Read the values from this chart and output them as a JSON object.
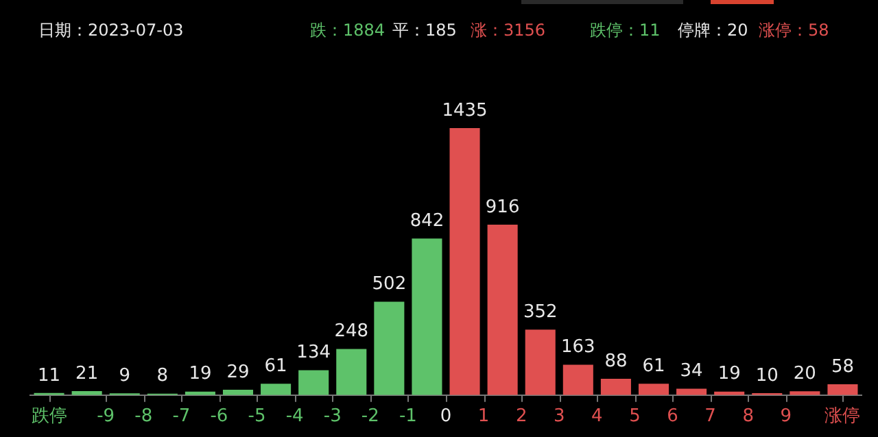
{
  "chart_data": {
    "type": "bar",
    "annotations": [
      "日期：2023-07-03",
      "跌：1884",
      "平：185",
      "涨：3156",
      "跌停：11",
      "停牌：20",
      "涨停：58"
    ],
    "x": [
      -10.5,
      -9.5,
      -8.5,
      -7.5,
      -6.5,
      -5.5,
      -4.5,
      -3.5,
      -2.5,
      -1.5,
      -0.5,
      0.5,
      1.5,
      2.5,
      3.5,
      4.5,
      5.5,
      6.5,
      7.5,
      8.5,
      9.5,
      10.5
    ],
    "values": [
      11,
      21,
      9,
      8,
      19,
      29,
      61,
      134,
      248,
      502,
      842,
      1435,
      916,
      352,
      163,
      88,
      61,
      34,
      19,
      10,
      20,
      58
    ],
    "colors": [
      "#5ec26a",
      "#5ec26a",
      "#5ec26a",
      "#5ec26a",
      "#5ec26a",
      "#5ec26a",
      "#5ec26a",
      "#5ec26a",
      "#5ec26a",
      "#5ec26a",
      "#5ec26a",
      "#e05050",
      "#e05050",
      "#e05050",
      "#e05050",
      "#e05050",
      "#e05050",
      "#e05050",
      "#e05050",
      "#e05050",
      "#e05050",
      "#e05050"
    ],
    "xlim": [
      -11,
      11
    ],
    "xticks": [
      {
        "value": -10.5,
        "label": "跌停"
      },
      -9,
      -8,
      -7,
      -6,
      -5,
      -4,
      -3,
      -2,
      -1,
      0,
      1,
      2,
      3,
      4,
      5,
      6,
      7,
      8,
      9,
      {
        "value": 10.5,
        "label": "涨停"
      }
    ],
    "data_labels": true,
    "grid": false,
    "legend": false
  }
}
